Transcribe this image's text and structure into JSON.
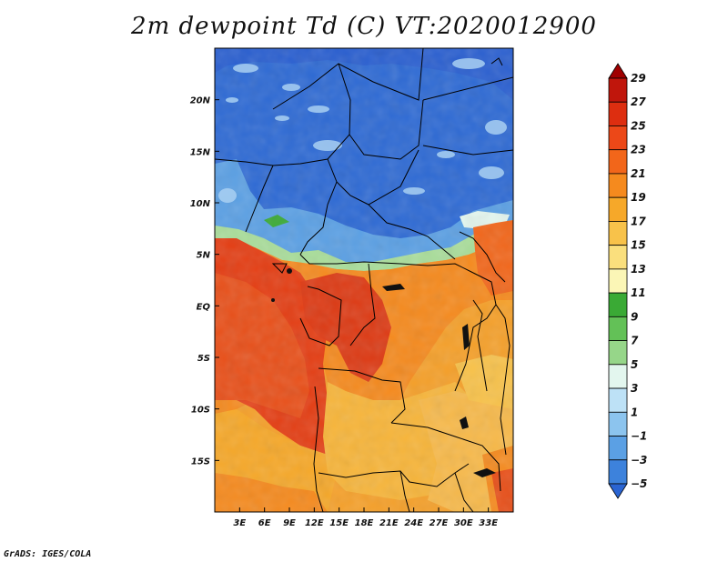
{
  "title": "2m dewpoint Td (C) VT:2020012900",
  "footer": "GrADS: IGES/COLA",
  "map": {
    "lon_range": [
      0,
      36
    ],
    "lat_range": [
      -20,
      25
    ],
    "lon_ticks": [
      {
        "value": 3,
        "label": "3E"
      },
      {
        "value": 6,
        "label": "6E"
      },
      {
        "value": 9,
        "label": "9E"
      },
      {
        "value": 12,
        "label": "12E"
      },
      {
        "value": 15,
        "label": "15E"
      },
      {
        "value": 18,
        "label": "18E"
      },
      {
        "value": 21,
        "label": "21E"
      },
      {
        "value": 24,
        "label": "24E"
      },
      {
        "value": 27,
        "label": "27E"
      },
      {
        "value": 30,
        "label": "30E"
      },
      {
        "value": 33,
        "label": "33E"
      }
    ],
    "lat_ticks": [
      {
        "value": 20,
        "label": "20N"
      },
      {
        "value": 15,
        "label": "15N"
      },
      {
        "value": 10,
        "label": "10N"
      },
      {
        "value": 5,
        "label": "5N"
      },
      {
        "value": 0,
        "label": "EQ"
      },
      {
        "value": -5,
        "label": "5S"
      },
      {
        "value": -10,
        "label": "10S"
      },
      {
        "value": -15,
        "label": "15S"
      }
    ]
  },
  "colorbar": {
    "labels": [
      "29",
      "27",
      "25",
      "23",
      "21",
      "19",
      "17",
      "15",
      "13",
      "11",
      "9",
      "7",
      "5",
      "3",
      "1",
      "−1",
      "−3",
      "−5"
    ],
    "colors": [
      "#a00000",
      "#c0160c",
      "#dd2e10",
      "#ec4818",
      "#f2661a",
      "#f58a1e",
      "#f6a829",
      "#f8c24a",
      "#fadf7d",
      "#fbf6b6",
      "#3aaa35",
      "#63c157",
      "#96d689",
      "#e3f6ee",
      "#bde1f6",
      "#8cc4ee",
      "#5ba0e4",
      "#3d82dc",
      "#2a64d2"
    ]
  }
}
